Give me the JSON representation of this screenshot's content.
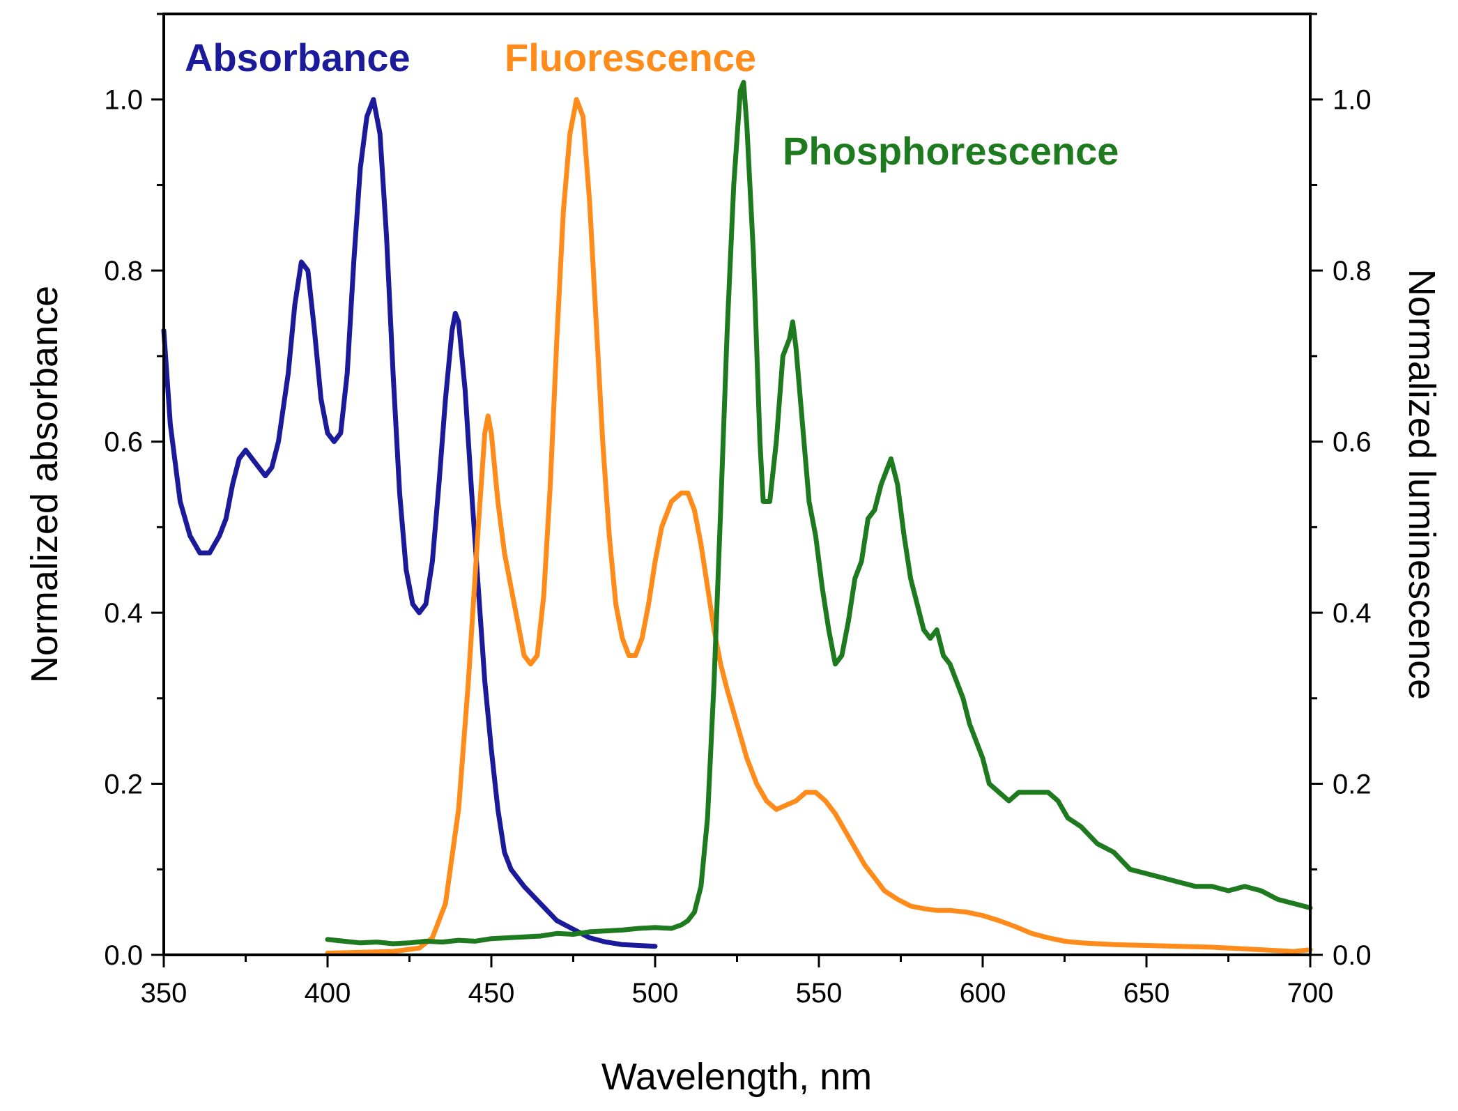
{
  "chart_data": {
    "type": "line",
    "title": "",
    "xlabel": "Wavelength, nm",
    "ylabel_left": "Normalized absorbance",
    "ylabel_right": "Normalized luminescence",
    "xlim": [
      350,
      700
    ],
    "ylim": [
      0,
      1.1
    ],
    "ylim_right": [
      0,
      1.1
    ],
    "grid": false,
    "x_ticks": [
      "350",
      "400",
      "450",
      "500",
      "550",
      "600",
      "650",
      "700"
    ],
    "y_ticks": [
      "0.0",
      "0.2",
      "0.4",
      "0.6",
      "0.8",
      "1.0"
    ],
    "y_ticks_right": [
      "0.0",
      "0.2",
      "0.4",
      "0.6",
      "0.8",
      "1.0"
    ],
    "series": [
      {
        "name": "Absorbance",
        "color": "#1a1a9a",
        "axis": "left",
        "points": [
          [
            350,
            0.73
          ],
          [
            352,
            0.62
          ],
          [
            355,
            0.53
          ],
          [
            358,
            0.49
          ],
          [
            361,
            0.47
          ],
          [
            364,
            0.47
          ],
          [
            367,
            0.49
          ],
          [
            369,
            0.51
          ],
          [
            371,
            0.55
          ],
          [
            373,
            0.58
          ],
          [
            375,
            0.59
          ],
          [
            377,
            0.58
          ],
          [
            379,
            0.57
          ],
          [
            381,
            0.56
          ],
          [
            383,
            0.57
          ],
          [
            385,
            0.6
          ],
          [
            388,
            0.68
          ],
          [
            390,
            0.76
          ],
          [
            392,
            0.81
          ],
          [
            394,
            0.8
          ],
          [
            396,
            0.73
          ],
          [
            398,
            0.65
          ],
          [
            400,
            0.61
          ],
          [
            402,
            0.6
          ],
          [
            404,
            0.61
          ],
          [
            406,
            0.68
          ],
          [
            408,
            0.81
          ],
          [
            410,
            0.92
          ],
          [
            412,
            0.98
          ],
          [
            414,
            1.0
          ],
          [
            416,
            0.96
          ],
          [
            418,
            0.84
          ],
          [
            420,
            0.68
          ],
          [
            422,
            0.54
          ],
          [
            424,
            0.45
          ],
          [
            426,
            0.41
          ],
          [
            428,
            0.4
          ],
          [
            430,
            0.41
          ],
          [
            432,
            0.46
          ],
          [
            434,
            0.55
          ],
          [
            436,
            0.65
          ],
          [
            438,
            0.73
          ],
          [
            439,
            0.75
          ],
          [
            440,
            0.74
          ],
          [
            442,
            0.66
          ],
          [
            444,
            0.54
          ],
          [
            446,
            0.43
          ],
          [
            448,
            0.32
          ],
          [
            450,
            0.24
          ],
          [
            452,
            0.17
          ],
          [
            454,
            0.12
          ],
          [
            456,
            0.1
          ],
          [
            460,
            0.08
          ],
          [
            465,
            0.06
          ],
          [
            470,
            0.04
          ],
          [
            475,
            0.03
          ],
          [
            480,
            0.02
          ],
          [
            485,
            0.015
          ],
          [
            490,
            0.012
          ],
          [
            495,
            0.011
          ],
          [
            500,
            0.01
          ]
        ]
      },
      {
        "name": "Fluorescence",
        "color": "#ff8c1a",
        "axis": "right",
        "points": [
          [
            400,
            0.002
          ],
          [
            420,
            0.004
          ],
          [
            428,
            0.008
          ],
          [
            432,
            0.02
          ],
          [
            436,
            0.06
          ],
          [
            440,
            0.17
          ],
          [
            443,
            0.32
          ],
          [
            446,
            0.5
          ],
          [
            448,
            0.61
          ],
          [
            449,
            0.63
          ],
          [
            450,
            0.61
          ],
          [
            452,
            0.53
          ],
          [
            454,
            0.47
          ],
          [
            456,
            0.43
          ],
          [
            458,
            0.39
          ],
          [
            460,
            0.35
          ],
          [
            462,
            0.34
          ],
          [
            464,
            0.35
          ],
          [
            466,
            0.42
          ],
          [
            468,
            0.55
          ],
          [
            470,
            0.72
          ],
          [
            472,
            0.87
          ],
          [
            474,
            0.96
          ],
          [
            476,
            1.0
          ],
          [
            478,
            0.98
          ],
          [
            480,
            0.88
          ],
          [
            482,
            0.74
          ],
          [
            484,
            0.6
          ],
          [
            486,
            0.49
          ],
          [
            488,
            0.41
          ],
          [
            490,
            0.37
          ],
          [
            492,
            0.35
          ],
          [
            494,
            0.35
          ],
          [
            496,
            0.37
          ],
          [
            498,
            0.41
          ],
          [
            500,
            0.46
          ],
          [
            502,
            0.5
          ],
          [
            505,
            0.53
          ],
          [
            508,
            0.54
          ],
          [
            510,
            0.54
          ],
          [
            512,
            0.52
          ],
          [
            514,
            0.48
          ],
          [
            516,
            0.43
          ],
          [
            518,
            0.38
          ],
          [
            520,
            0.34
          ],
          [
            522,
            0.31
          ],
          [
            525,
            0.27
          ],
          [
            528,
            0.23
          ],
          [
            531,
            0.2
          ],
          [
            534,
            0.18
          ],
          [
            537,
            0.17
          ],
          [
            540,
            0.175
          ],
          [
            543,
            0.18
          ],
          [
            546,
            0.19
          ],
          [
            549,
            0.19
          ],
          [
            552,
            0.18
          ],
          [
            555,
            0.165
          ],
          [
            558,
            0.145
          ],
          [
            561,
            0.125
          ],
          [
            564,
            0.105
          ],
          [
            567,
            0.09
          ],
          [
            570,
            0.075
          ],
          [
            574,
            0.065
          ],
          [
            578,
            0.057
          ],
          [
            582,
            0.054
          ],
          [
            586,
            0.052
          ],
          [
            590,
            0.052
          ],
          [
            595,
            0.05
          ],
          [
            600,
            0.046
          ],
          [
            605,
            0.04
          ],
          [
            610,
            0.033
          ],
          [
            615,
            0.025
          ],
          [
            620,
            0.02
          ],
          [
            625,
            0.016
          ],
          [
            630,
            0.014
          ],
          [
            640,
            0.012
          ],
          [
            650,
            0.011
          ],
          [
            660,
            0.01
          ],
          [
            670,
            0.009
          ],
          [
            680,
            0.007
          ],
          [
            690,
            0.005
          ],
          [
            695,
            0.004
          ],
          [
            700,
            0.006
          ]
        ]
      },
      {
        "name": "Phosphorescence",
        "color": "#1e7a1e",
        "axis": "right",
        "points": [
          [
            400,
            0.018
          ],
          [
            405,
            0.016
          ],
          [
            410,
            0.014
          ],
          [
            415,
            0.015
          ],
          [
            420,
            0.013
          ],
          [
            425,
            0.014
          ],
          [
            430,
            0.016
          ],
          [
            435,
            0.015
          ],
          [
            440,
            0.017
          ],
          [
            445,
            0.016
          ],
          [
            450,
            0.019
          ],
          [
            455,
            0.02
          ],
          [
            460,
            0.021
          ],
          [
            465,
            0.022
          ],
          [
            470,
            0.025
          ],
          [
            475,
            0.024
          ],
          [
            480,
            0.027
          ],
          [
            485,
            0.028
          ],
          [
            490,
            0.029
          ],
          [
            495,
            0.031
          ],
          [
            500,
            0.032
          ],
          [
            505,
            0.031
          ],
          [
            508,
            0.035
          ],
          [
            510,
            0.04
          ],
          [
            512,
            0.05
          ],
          [
            514,
            0.08
          ],
          [
            516,
            0.16
          ],
          [
            518,
            0.32
          ],
          [
            520,
            0.52
          ],
          [
            522,
            0.73
          ],
          [
            524,
            0.9
          ],
          [
            526,
            1.01
          ],
          [
            527,
            1.02
          ],
          [
            528,
            0.97
          ],
          [
            530,
            0.82
          ],
          [
            532,
            0.6
          ],
          [
            533,
            0.53
          ],
          [
            535,
            0.53
          ],
          [
            537,
            0.6
          ],
          [
            539,
            0.7
          ],
          [
            540,
            0.71
          ],
          [
            541,
            0.72
          ],
          [
            542,
            0.74
          ],
          [
            543,
            0.71
          ],
          [
            545,
            0.62
          ],
          [
            547,
            0.53
          ],
          [
            549,
            0.49
          ],
          [
            551,
            0.43
          ],
          [
            553,
            0.38
          ],
          [
            555,
            0.34
          ],
          [
            557,
            0.35
          ],
          [
            559,
            0.39
          ],
          [
            561,
            0.44
          ],
          [
            563,
            0.46
          ],
          [
            565,
            0.51
          ],
          [
            567,
            0.52
          ],
          [
            569,
            0.55
          ],
          [
            571,
            0.57
          ],
          [
            572,
            0.58
          ],
          [
            574,
            0.55
          ],
          [
            576,
            0.49
          ],
          [
            578,
            0.44
          ],
          [
            580,
            0.41
          ],
          [
            582,
            0.38
          ],
          [
            584,
            0.37
          ],
          [
            586,
            0.38
          ],
          [
            588,
            0.35
          ],
          [
            590,
            0.34
          ],
          [
            592,
            0.32
          ],
          [
            594,
            0.3
          ],
          [
            596,
            0.27
          ],
          [
            598,
            0.25
          ],
          [
            600,
            0.23
          ],
          [
            602,
            0.2
          ],
          [
            605,
            0.19
          ],
          [
            608,
            0.18
          ],
          [
            611,
            0.19
          ],
          [
            614,
            0.19
          ],
          [
            617,
            0.19
          ],
          [
            620,
            0.19
          ],
          [
            623,
            0.18
          ],
          [
            626,
            0.16
          ],
          [
            630,
            0.15
          ],
          [
            635,
            0.13
          ],
          [
            640,
            0.12
          ],
          [
            645,
            0.1
          ],
          [
            650,
            0.095
          ],
          [
            655,
            0.09
          ],
          [
            660,
            0.085
          ],
          [
            665,
            0.08
          ],
          [
            670,
            0.08
          ],
          [
            675,
            0.075
          ],
          [
            680,
            0.08
          ],
          [
            685,
            0.075
          ],
          [
            690,
            0.065
          ],
          [
            695,
            0.06
          ],
          [
            700,
            0.055
          ]
        ]
      }
    ],
    "annotations": [
      {
        "text": "Absorbance",
        "color": "#1a1a9a"
      },
      {
        "text": "Fluorescence",
        "color": "#ff8c1a"
      },
      {
        "text": "Phosphorescence",
        "color": "#1e7a1e"
      }
    ]
  }
}
